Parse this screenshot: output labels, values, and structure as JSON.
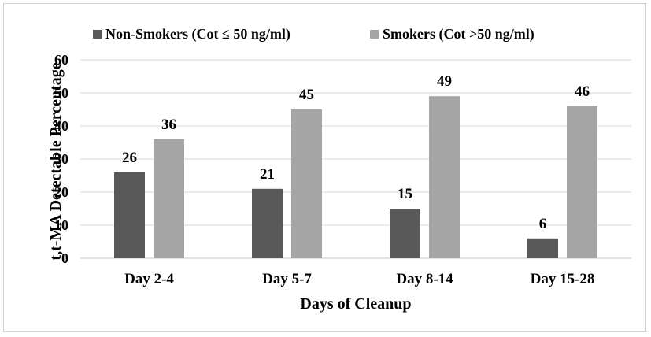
{
  "chart_data": {
    "type": "bar",
    "title": "",
    "categories": [
      "Day 2-4",
      "Day 5-7",
      "Day 8-14",
      "Day 15-28"
    ],
    "series": [
      {
        "name": "Non-Smokers (Cot ≤ 50 ng/ml)",
        "color": "#595959",
        "values": [
          26,
          21,
          15,
          6
        ]
      },
      {
        "name": "Smokers (Cot >50 ng/ml)",
        "color": "#a6a6a6",
        "values": [
          36,
          45,
          49,
          46
        ]
      }
    ],
    "xlabel": "Days of Cleanup",
    "ylabel": "t,t-MA Detectable Percentage",
    "ylim": [
      0,
      60
    ],
    "yticks": [
      0,
      10,
      20,
      30,
      40,
      50,
      60
    ],
    "grid": true,
    "legend_position": "top-center",
    "data_labels": true
  }
}
